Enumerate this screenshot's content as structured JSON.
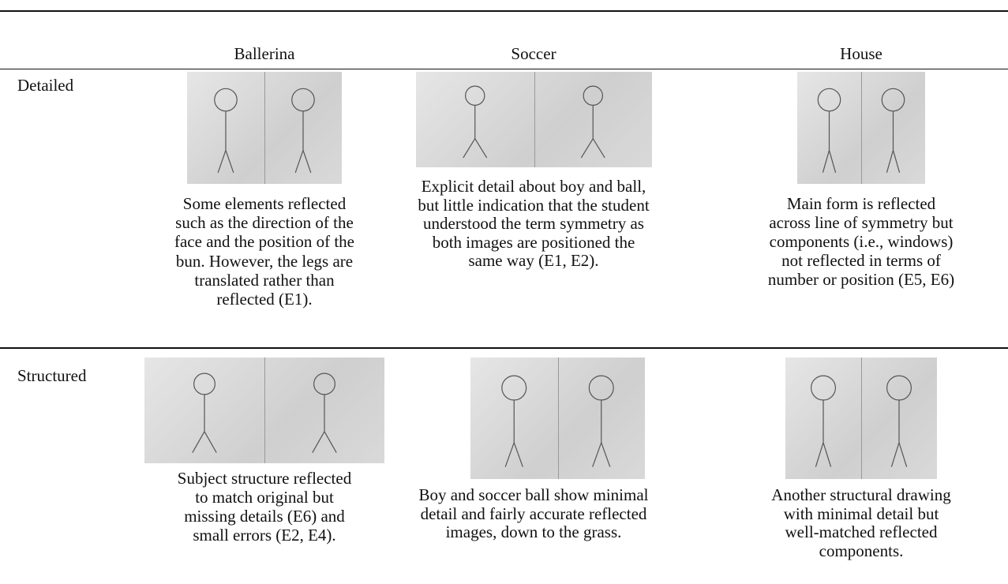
{
  "table": {
    "columns": [
      "Ballerina",
      "Soccer",
      "House"
    ],
    "rows": [
      {
        "label": "Detailed",
        "cells": [
          {
            "caption": [
              "Some elements reflected",
              "such as the direction of the",
              "face and the position of the",
              "bun. However, the legs are",
              "translated rather than",
              "reflected (E1)."
            ]
          },
          {
            "caption": [
              "Explicit detail about boy and ball,",
              "but little indication that the student",
              "understood the term symmetry as",
              "both images are positioned the",
              "same way (E1, E2)."
            ]
          },
          {
            "caption": [
              "Main form is reflected",
              "across line of symmetry but",
              "components (i.e., windows)",
              "not reflected in terms of",
              "number or position (E5, E6)"
            ]
          }
        ]
      },
      {
        "label": "Structured",
        "cells": [
          {
            "caption": [
              "Subject structure reflected",
              "to match original but",
              "missing details (E6) and",
              "small errors (E2, E4)."
            ]
          },
          {
            "caption": [
              "Boy and soccer ball show minimal",
              "detail and fairly accurate reflected",
              "images, down to the grass."
            ]
          },
          {
            "caption": [
              "Another structural drawing",
              "with minimal detail but",
              "well-matched reflected",
              "components."
            ]
          }
        ]
      }
    ]
  }
}
